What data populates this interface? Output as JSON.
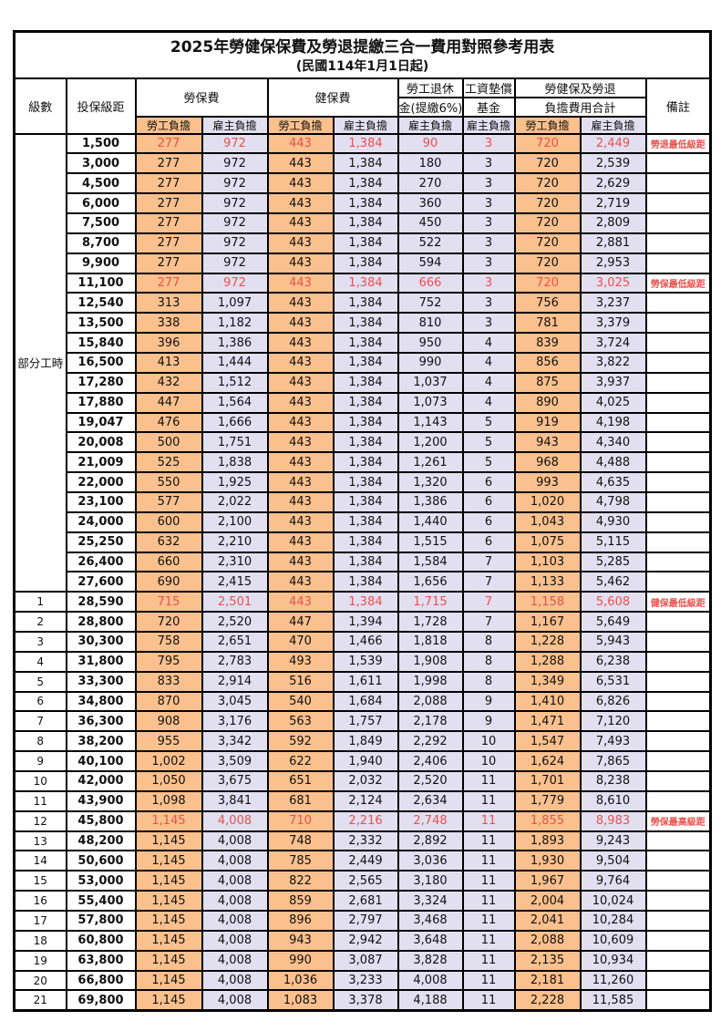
{
  "title": "2025年勞健保保費及勞退提繳三合一費用對照參考用表",
  "subtitle": "(民國114年1月1日起)",
  "header": {
    "level": "級數",
    "salary_bracket": "投保級距",
    "labor_insurance": "勞保費",
    "health_insurance": "健保費",
    "pension_line1": "勞工退休",
    "pension_line2": "金(提繳6%)",
    "wage_fund_line1": "工資墊償",
    "wage_fund_line2": "基金",
    "total_line1": "勞健保及勞退",
    "total_line2": "負擔費用合計",
    "remark": "備註",
    "employee_share": "勞工負擔",
    "employer_share": "雇主負擔"
  },
  "colors": {
    "employee_bg": "#FAC08D",
    "employer_bg": "#E2DFF1",
    "highlight_red": "#E8524D",
    "border": "#000000"
  },
  "table": {
    "column_keys": [
      "level",
      "salary",
      "labor_employee",
      "labor_employer",
      "health_employee",
      "health_employer",
      "pension_employer",
      "wage_fund_employer",
      "total_employee",
      "total_employer",
      "remark",
      "is_red_highlight"
    ],
    "part_time_label": "部分工時",
    "part_time_row_count": 23,
    "rows": [
      [
        "",
        "1,500",
        "277",
        "972",
        "443",
        "1,384",
        "90",
        "3",
        "720",
        "2,449",
        "勞退最低級距",
        true
      ],
      [
        "",
        "3,000",
        "277",
        "972",
        "443",
        "1,384",
        "180",
        "3",
        "720",
        "2,539",
        "",
        false
      ],
      [
        "",
        "4,500",
        "277",
        "972",
        "443",
        "1,384",
        "270",
        "3",
        "720",
        "2,629",
        "",
        false
      ],
      [
        "",
        "6,000",
        "277",
        "972",
        "443",
        "1,384",
        "360",
        "3",
        "720",
        "2,719",
        "",
        false
      ],
      [
        "",
        "7,500",
        "277",
        "972",
        "443",
        "1,384",
        "450",
        "3",
        "720",
        "2,809",
        "",
        false
      ],
      [
        "",
        "8,700",
        "277",
        "972",
        "443",
        "1,384",
        "522",
        "3",
        "720",
        "2,881",
        "",
        false
      ],
      [
        "",
        "9,900",
        "277",
        "972",
        "443",
        "1,384",
        "594",
        "3",
        "720",
        "2,953",
        "",
        false
      ],
      [
        "",
        "11,100",
        "277",
        "972",
        "443",
        "1,384",
        "666",
        "3",
        "720",
        "3,025",
        "勞保最低級距",
        true
      ],
      [
        "",
        "12,540",
        "313",
        "1,097",
        "443",
        "1,384",
        "752",
        "3",
        "756",
        "3,237",
        "",
        false
      ],
      [
        "",
        "13,500",
        "338",
        "1,182",
        "443",
        "1,384",
        "810",
        "3",
        "781",
        "3,379",
        "",
        false
      ],
      [
        "",
        "15,840",
        "396",
        "1,386",
        "443",
        "1,384",
        "950",
        "4",
        "839",
        "3,724",
        "",
        false
      ],
      [
        "",
        "16,500",
        "413",
        "1,444",
        "443",
        "1,384",
        "990",
        "4",
        "856",
        "3,822",
        "",
        false
      ],
      [
        "",
        "17,280",
        "432",
        "1,512",
        "443",
        "1,384",
        "1,037",
        "4",
        "875",
        "3,937",
        "",
        false
      ],
      [
        "",
        "17,880",
        "447",
        "1,564",
        "443",
        "1,384",
        "1,073",
        "4",
        "890",
        "4,025",
        "",
        false
      ],
      [
        "",
        "19,047",
        "476",
        "1,666",
        "443",
        "1,384",
        "1,143",
        "5",
        "919",
        "4,198",
        "",
        false
      ],
      [
        "",
        "20,008",
        "500",
        "1,751",
        "443",
        "1,384",
        "1,200",
        "5",
        "943",
        "4,340",
        "",
        false
      ],
      [
        "",
        "21,009",
        "525",
        "1,838",
        "443",
        "1,384",
        "1,261",
        "5",
        "968",
        "4,488",
        "",
        false
      ],
      [
        "",
        "22,000",
        "550",
        "1,925",
        "443",
        "1,384",
        "1,320",
        "6",
        "993",
        "4,635",
        "",
        false
      ],
      [
        "",
        "23,100",
        "577",
        "2,022",
        "443",
        "1,384",
        "1,386",
        "6",
        "1,020",
        "4,798",
        "",
        false
      ],
      [
        "",
        "24,000",
        "600",
        "2,100",
        "443",
        "1,384",
        "1,440",
        "6",
        "1,043",
        "4,930",
        "",
        false
      ],
      [
        "",
        "25,250",
        "632",
        "2,210",
        "443",
        "1,384",
        "1,515",
        "6",
        "1,075",
        "5,115",
        "",
        false
      ],
      [
        "",
        "26,400",
        "660",
        "2,310",
        "443",
        "1,384",
        "1,584",
        "7",
        "1,103",
        "5,285",
        "",
        false
      ],
      [
        "",
        "27,600",
        "690",
        "2,415",
        "443",
        "1,384",
        "1,656",
        "7",
        "1,133",
        "5,462",
        "",
        false
      ],
      [
        "1",
        "28,590",
        "715",
        "2,501",
        "443",
        "1,384",
        "1,715",
        "7",
        "1,158",
        "5,608",
        "健保最低級距",
        true
      ],
      [
        "2",
        "28,800",
        "720",
        "2,520",
        "447",
        "1,394",
        "1,728",
        "7",
        "1,167",
        "5,649",
        "",
        false
      ],
      [
        "3",
        "30,300",
        "758",
        "2,651",
        "470",
        "1,466",
        "1,818",
        "8",
        "1,228",
        "5,943",
        "",
        false
      ],
      [
        "4",
        "31,800",
        "795",
        "2,783",
        "493",
        "1,539",
        "1,908",
        "8",
        "1,288",
        "6,238",
        "",
        false
      ],
      [
        "5",
        "33,300",
        "833",
        "2,914",
        "516",
        "1,611",
        "1,998",
        "8",
        "1,349",
        "6,531",
        "",
        false
      ],
      [
        "6",
        "34,800",
        "870",
        "3,045",
        "540",
        "1,684",
        "2,088",
        "9",
        "1,410",
        "6,826",
        "",
        false
      ],
      [
        "7",
        "36,300",
        "908",
        "3,176",
        "563",
        "1,757",
        "2,178",
        "9",
        "1,471",
        "7,120",
        "",
        false
      ],
      [
        "8",
        "38,200",
        "955",
        "3,342",
        "592",
        "1,849",
        "2,292",
        "10",
        "1,547",
        "7,493",
        "",
        false
      ],
      [
        "9",
        "40,100",
        "1,002",
        "3,509",
        "622",
        "1,940",
        "2,406",
        "10",
        "1,624",
        "7,865",
        "",
        false
      ],
      [
        "10",
        "42,000",
        "1,050",
        "3,675",
        "651",
        "2,032",
        "2,520",
        "11",
        "1,701",
        "8,238",
        "",
        false
      ],
      [
        "11",
        "43,900",
        "1,098",
        "3,841",
        "681",
        "2,124",
        "2,634",
        "11",
        "1,779",
        "8,610",
        "",
        false
      ],
      [
        "12",
        "45,800",
        "1,145",
        "4,008",
        "710",
        "2,216",
        "2,748",
        "11",
        "1,855",
        "8,983",
        "勞保最高級距",
        true
      ],
      [
        "13",
        "48,200",
        "1,145",
        "4,008",
        "748",
        "2,332",
        "2,892",
        "11",
        "1,893",
        "9,243",
        "",
        false
      ],
      [
        "14",
        "50,600",
        "1,145",
        "4,008",
        "785",
        "2,449",
        "3,036",
        "11",
        "1,930",
        "9,504",
        "",
        false
      ],
      [
        "15",
        "53,000",
        "1,145",
        "4,008",
        "822",
        "2,565",
        "3,180",
        "11",
        "1,967",
        "9,764",
        "",
        false
      ],
      [
        "16",
        "55,400",
        "1,145",
        "4,008",
        "859",
        "2,681",
        "3,324",
        "11",
        "2,004",
        "10,024",
        "",
        false
      ],
      [
        "17",
        "57,800",
        "1,145",
        "4,008",
        "896",
        "2,797",
        "3,468",
        "11",
        "2,041",
        "10,284",
        "",
        false
      ],
      [
        "18",
        "60,800",
        "1,145",
        "4,008",
        "943",
        "2,942",
        "3,648",
        "11",
        "2,088",
        "10,609",
        "",
        false
      ],
      [
        "19",
        "63,800",
        "1,145",
        "4,008",
        "990",
        "3,087",
        "3,828",
        "11",
        "2,135",
        "10,934",
        "",
        false
      ],
      [
        "20",
        "66,800",
        "1,145",
        "4,008",
        "1,036",
        "3,233",
        "4,008",
        "11",
        "2,181",
        "11,260",
        "",
        false
      ],
      [
        "21",
        "69,800",
        "1,145",
        "4,008",
        "1,083",
        "3,378",
        "4,188",
        "11",
        "2,228",
        "11,585",
        "",
        false
      ]
    ]
  }
}
